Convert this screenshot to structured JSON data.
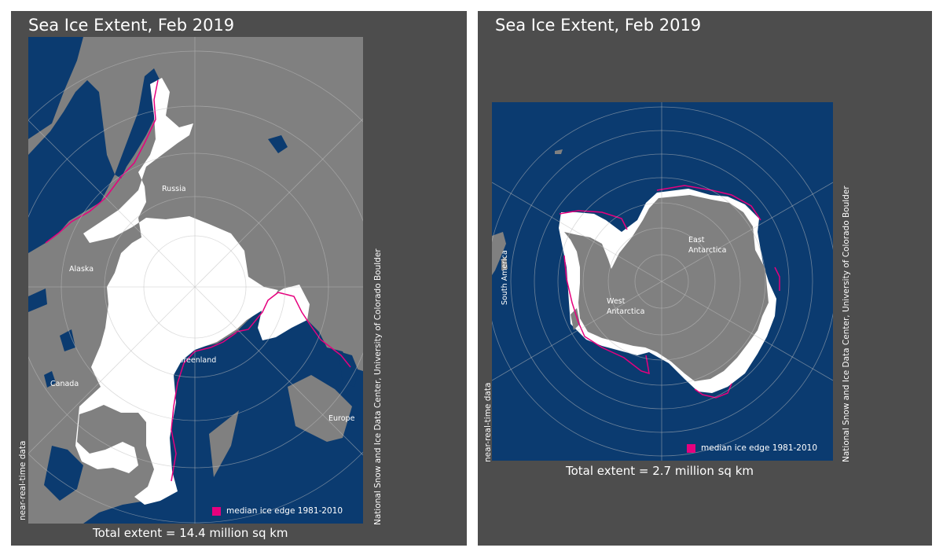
{
  "north": {
    "title": "Sea Ice Extent, Feb 2019",
    "total_extent": "Total extent = 14.4 million sq km",
    "source": "National Snow and Ice Data Center, University of Colorado Boulder",
    "status": "near-real-time data",
    "legend": "median ice edge 1981-2010",
    "region_labels": {
      "russia": "Russia",
      "alaska": "Alaska",
      "canada": "Canada",
      "greenland": "Greenland",
      "europe": "Europe"
    }
  },
  "south": {
    "title": "Sea Ice Extent, Feb 2019",
    "total_extent": "Total extent = 2.7 million sq km",
    "source": "National Snow and Ice Data Center, University of Colorado Boulder",
    "status": "near-real-time data",
    "legend": "median ice edge 1981-2010",
    "region_labels": {
      "south_america": "South America",
      "east_line1": "East",
      "east_line2": "Antarctica",
      "west_line1": "West",
      "west_line2": "Antarctica"
    }
  },
  "colors": {
    "panel": "#4d4d4d",
    "ocean": "#0b3b70",
    "land": "#808080",
    "ice": "#ffffff",
    "median_edge": "#e6007e"
  }
}
